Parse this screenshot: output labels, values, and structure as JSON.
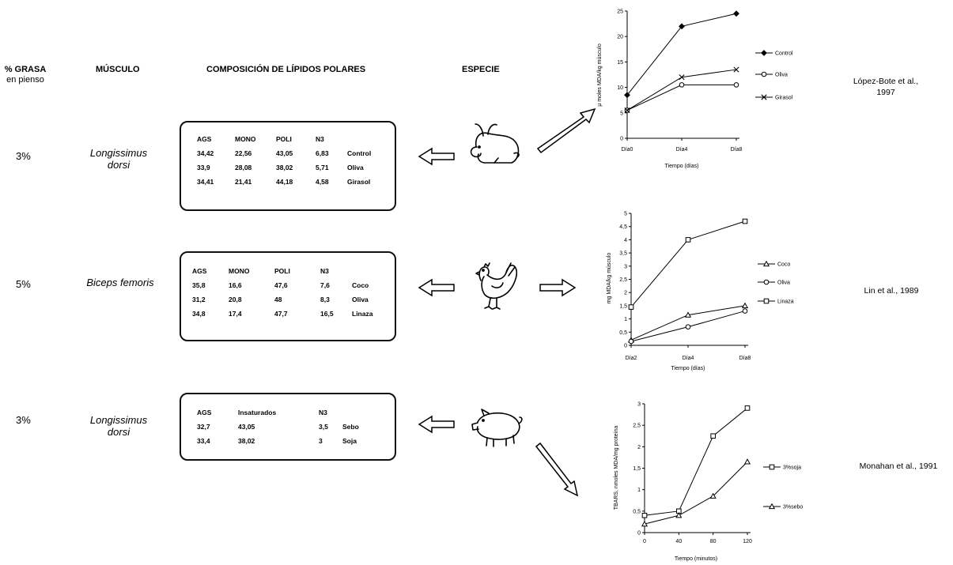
{
  "headers": {
    "grasa": "% GRASA",
    "grasa_sub": "en pienso",
    "musculo": "MÚSCULO",
    "composicion": "COMPOSICIÓN DE LÍPIDOS POLARES",
    "especie": "ESPECIE"
  },
  "rows": [
    {
      "grasa": "3%",
      "musculo_line1": "Longissimus",
      "musculo_line2": "dorsi",
      "species_icon": "rabbit-icon",
      "table": {
        "columns": [
          "AGS",
          "MONO",
          "POLI",
          "N3",
          ""
        ],
        "rows": [
          [
            "34,42",
            "22,56",
            "43,05",
            "6,83",
            "Control"
          ],
          [
            "33,9",
            "28,08",
            "38,02",
            "5,71",
            "Oliva"
          ],
          [
            "34,41",
            "21,41",
            "44,18",
            "4,58",
            "Girasol"
          ]
        ]
      },
      "reference_line1": "López-Bote et al.,",
      "reference_line2": "1997"
    },
    {
      "grasa": "5%",
      "musculo_line1": "Biceps femoris",
      "musculo_line2": "",
      "species_icon": "chicken-icon",
      "table": {
        "columns": [
          "AGS",
          "MONO",
          "POLI",
          "N3",
          ""
        ],
        "rows": [
          [
            "35,8",
            "16,6",
            "47,6",
            "7,6",
            "Coco"
          ],
          [
            "31,2",
            "20,8",
            "48",
            "8,3",
            "Oliva"
          ],
          [
            "34,8",
            "17,4",
            "47,7",
            "16,5",
            "Linaza"
          ]
        ]
      },
      "reference_line1": "Lin et al., 1989",
      "reference_line2": ""
    },
    {
      "grasa": "3%",
      "musculo_line1": "Longissimus",
      "musculo_line2": "dorsi",
      "species_icon": "pig-icon",
      "table": {
        "columns": [
          "AGS",
          "Insaturados",
          "N3",
          ""
        ],
        "rows": [
          [
            "32,7",
            "43,05",
            "3,5",
            "Sebo"
          ],
          [
            "33,4",
            "38,02",
            "3",
            "Soja"
          ]
        ]
      },
      "reference_line1": "Monahan et al., 1991",
      "reference_line2": ""
    }
  ],
  "chart_data": [
    {
      "type": "line",
      "xlabel": "Tiempo (días)",
      "ylabel": "µ moles MDA/kg músculo",
      "categories": [
        "Día0",
        "Día4",
        "Día8"
      ],
      "ylim": [
        0,
        25
      ],
      "yticks": [
        0,
        5,
        10,
        15,
        20,
        25
      ],
      "legend_position": "right",
      "series": [
        {
          "name": "Control",
          "marker": "diamond",
          "values": [
            8.5,
            22,
            24.5
          ]
        },
        {
          "name": "Oliva",
          "marker": "circle",
          "values": [
            5.5,
            10.5,
            10.5
          ]
        },
        {
          "name": "Girasol",
          "marker": "x",
          "values": [
            5.5,
            12,
            13.5
          ]
        }
      ]
    },
    {
      "type": "line",
      "xlabel": "Tiempo (días)",
      "ylabel": "mg MDA/kg músculo",
      "categories": [
        "Día2",
        "Día4",
        "Día8"
      ],
      "ylim": [
        0,
        5
      ],
      "yticks": [
        0,
        0.5,
        1,
        1.5,
        2,
        2.5,
        3,
        3.5,
        4,
        4.5,
        5
      ],
      "legend_position": "right",
      "series": [
        {
          "name": "Coco",
          "marker": "triangle",
          "values": [
            0.2,
            1.15,
            1.5
          ]
        },
        {
          "name": "Oliva",
          "marker": "circle",
          "values": [
            0.15,
            0.7,
            1.3
          ]
        },
        {
          "name": "Linaza",
          "marker": "square",
          "values": [
            1.45,
            4.0,
            4.7
          ]
        }
      ]
    },
    {
      "type": "line",
      "xlabel": "Tiempo (minutos)",
      "ylabel": "TBARS, nmoles MDA/mg proteína",
      "categories": [
        "0",
        "40",
        "80",
        "120"
      ],
      "ylim": [
        0,
        3
      ],
      "yticks": [
        0,
        0.5,
        1,
        1.5,
        2,
        2.5,
        3
      ],
      "legend_position": "right",
      "series": [
        {
          "name": "3%soja",
          "marker": "square",
          "values": [
            0.4,
            0.5,
            2.25,
            2.9
          ]
        },
        {
          "name": "3%sebo",
          "marker": "triangle",
          "values": [
            0.2,
            0.4,
            0.85,
            1.65
          ]
        }
      ]
    }
  ]
}
